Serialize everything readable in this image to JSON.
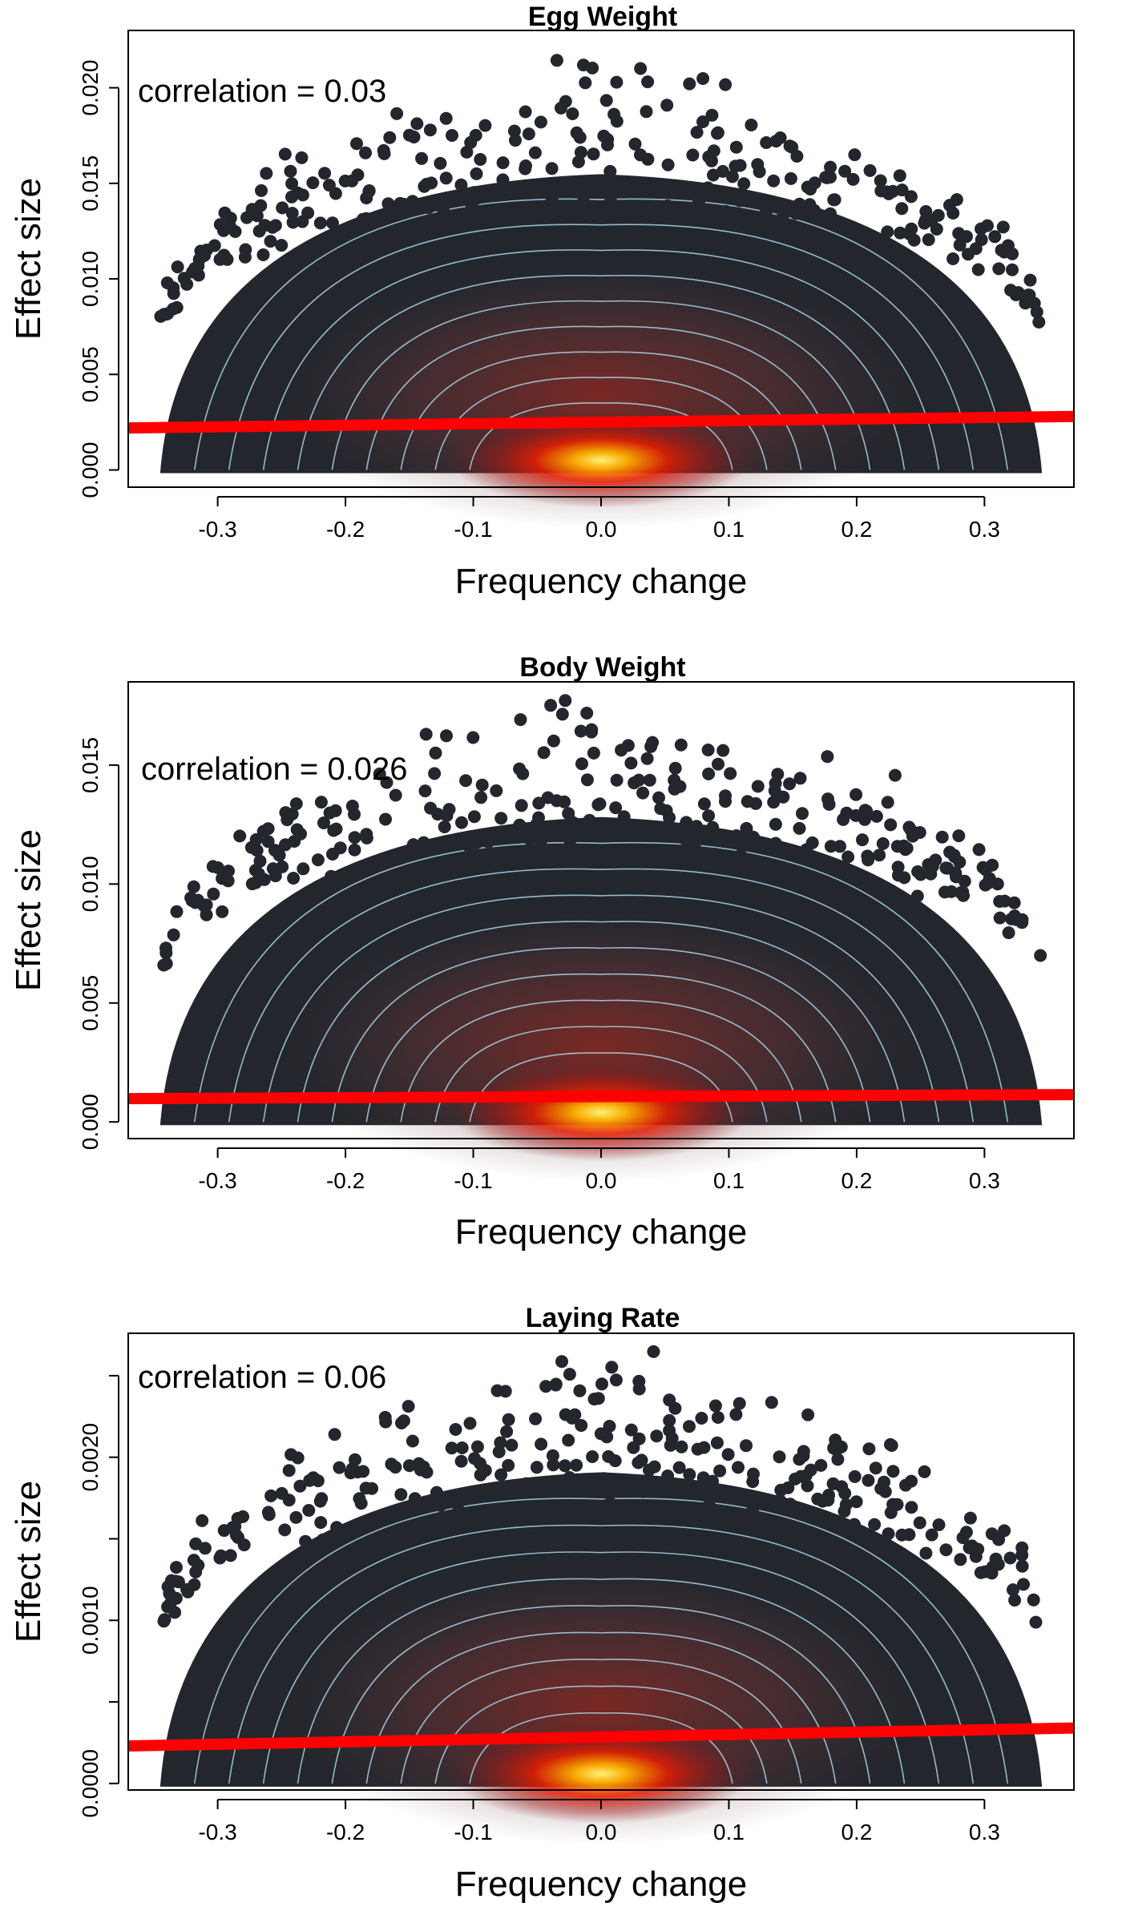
{
  "chart_data": [
    {
      "type": "scatter",
      "title": "Egg Weight",
      "xlabel": "Frequency change",
      "ylabel": "Effect size",
      "annotation": "correlation = 0.03",
      "xlim": [
        -0.37,
        0.37
      ],
      "ylim": [
        -0.0009,
        0.023
      ],
      "xticks": [
        "-0.3",
        "-0.2",
        "-0.1",
        "0.0",
        "0.1",
        "0.2",
        "0.3"
      ],
      "xtick_values": [
        -0.3,
        -0.2,
        -0.1,
        0.0,
        0.1,
        0.2,
        0.3
      ],
      "yticks": [
        "0.000",
        "0.005",
        "0.010",
        "0.015",
        "0.020"
      ],
      "ytick_values": [
        0.0,
        0.005,
        0.01,
        0.015,
        0.02
      ],
      "spread": {
        "xmax": 0.345,
        "ymax": 0.0215,
        "ybase": 0.0
      },
      "regression": {
        "x": [
          -0.37,
          0.37
        ],
        "y": [
          0.0022,
          0.0028
        ]
      },
      "grid": false,
      "legend": "none"
    },
    {
      "type": "scatter",
      "title": "Body Weight",
      "xlabel": "Frequency change",
      "ylabel": "Effect size",
      "annotation": "correlation = 0.026",
      "xlim": [
        -0.37,
        0.37
      ],
      "ylim": [
        -0.0007,
        0.0185
      ],
      "xticks": [
        "-0.3",
        "-0.2",
        "-0.1",
        "0.0",
        "0.1",
        "0.2",
        "0.3"
      ],
      "xtick_values": [
        -0.3,
        -0.2,
        -0.1,
        0.0,
        0.1,
        0.2,
        0.3
      ],
      "yticks": [
        "0.000",
        "0.005",
        "0.010",
        "0.015"
      ],
      "ytick_values": [
        0.0,
        0.005,
        0.01,
        0.015
      ],
      "spread": {
        "xmax": 0.345,
        "ymax": 0.0178,
        "ybase": 0.0
      },
      "regression": {
        "x": [
          -0.37,
          0.37
        ],
        "y": [
          0.00098,
          0.00115
        ]
      },
      "grid": false,
      "legend": "none"
    },
    {
      "type": "scatter",
      "title": "Laying Rate",
      "xlabel": "Frequency change",
      "ylabel": "Effect size",
      "annotation": "correlation = 0.06",
      "xlim": [
        -0.37,
        0.37
      ],
      "ylim": [
        -4e-05,
        0.00276
      ],
      "xticks": [
        "-0.3",
        "-0.2",
        "-0.1",
        "0.0",
        "0.1",
        "0.2",
        "0.3"
      ],
      "xtick_values": [
        -0.3,
        -0.2,
        -0.1,
        0.0,
        0.1,
        0.2,
        0.3
      ],
      "yticks": [
        "0.0000",
        "0.0010",
        "0.0020"
      ],
      "ytick_values": [
        0.0,
        0.001,
        0.002
      ],
      "minor_yticks": [
        0.0005,
        0.0015,
        0.0025
      ],
      "spread": {
        "xmax": 0.345,
        "ymax": 0.00265,
        "ybase": 0.0
      },
      "regression": {
        "x": [
          -0.37,
          0.37
        ],
        "y": [
          0.00023,
          0.00034
        ]
      },
      "grid": false,
      "legend": "none"
    }
  ],
  "colors": {
    "points": "#23262c",
    "contour": "#a8d4e6",
    "density_hot": "#ffe066",
    "density_mid": "#e81c00",
    "regression": "#ff0000",
    "axis": "#000000"
  }
}
